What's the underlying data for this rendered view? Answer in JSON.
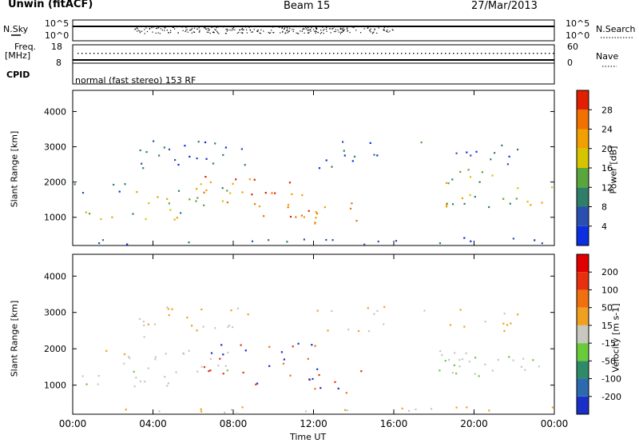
{
  "header": {
    "title_left": "Unwin (fitACF)",
    "title_center": "Beam 15",
    "title_right": "27/Mar/2013"
  },
  "summary": {
    "nsky_label": "N.Sky",
    "nsky_top": "10^5",
    "nsky_bottom": "10^0",
    "nsearch_label": "N.Search",
    "nsearch_top": "10^5",
    "nsearch_bottom": "10^0",
    "freq_label_line1": "Freq.",
    "freq_label_line2": "[MHz]",
    "freq_top": "18",
    "freq_bottom": "8",
    "nave_label": "Nave",
    "nave_top": "60",
    "nave_bottom": "0",
    "cpid_label": "CPID",
    "cpid_text": "normal (fast stereo) 153 RF"
  },
  "chart_data": [
    {
      "type": "heatmap",
      "panel": "power",
      "ylabel": "Slant Range [km]",
      "yticks": [
        "1000",
        "2000",
        "3000",
        "4000"
      ],
      "ylim": [
        200,
        4600
      ],
      "xlim_hours": [
        0,
        24
      ],
      "colorbar_label": "Power [dB]",
      "colorbar_ticks": [
        "4",
        "8",
        "12",
        "16",
        "20",
        "24",
        "28"
      ],
      "colorbar_colors": [
        "#0a2ee0",
        "#2a4fb0",
        "#2f7e6a",
        "#5aa53c",
        "#d6c400",
        "#f0a000",
        "#f07000",
        "#e02000"
      ]
    },
    {
      "type": "heatmap",
      "panel": "velocity",
      "ylabel": "Slant Range [km]",
      "yticks": [
        "1000",
        "2000",
        "3000",
        "4000"
      ],
      "ylim": [
        200,
        4600
      ],
      "xlim_hours": [
        0,
        24
      ],
      "colorbar_label": "Velocity [m s-1]",
      "colorbar_ticks": [
        "200",
        "100",
        "50",
        "15",
        "-15",
        "-50",
        "-100",
        "-200"
      ],
      "colorbar_colors": [
        "#1a2ec8",
        "#2c6ab0",
        "#2f8a6a",
        "#6acb3a",
        "#c8c8c0",
        "#f0a020",
        "#f07010",
        "#e83010",
        "#e00000"
      ]
    }
  ],
  "xaxis": {
    "ticks": [
      "00:00",
      "04:00",
      "08:00",
      "12:00",
      "16:00",
      "20:00",
      "00:00"
    ],
    "label": "Time UT"
  },
  "colors": {
    "power_low": "#0a2ee0",
    "power_mid": "#5aa53c",
    "power_high": "#e02000",
    "vel_pos": "#1a2ec8",
    "vel_zero": "#c8c8c0",
    "vel_neg": "#e83010"
  }
}
